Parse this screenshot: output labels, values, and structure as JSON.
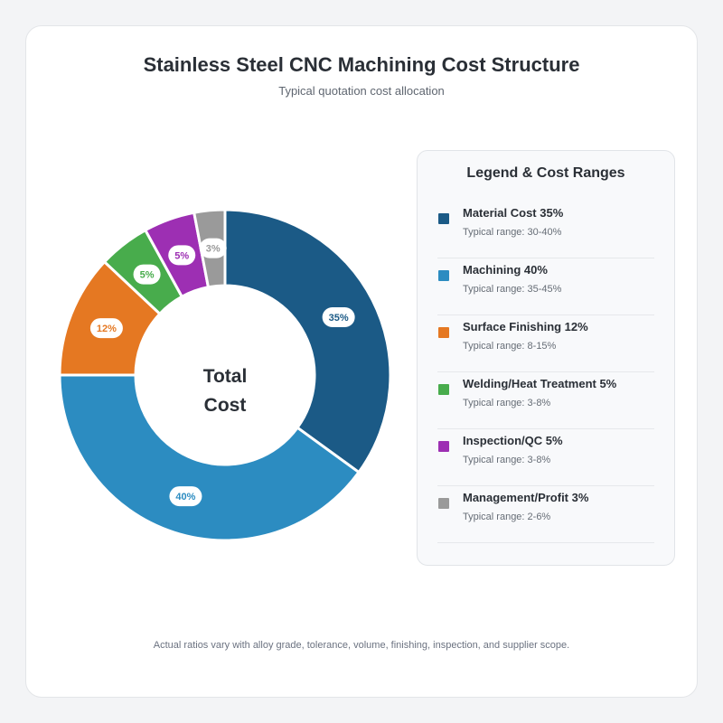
{
  "chart_data": {
    "type": "pie",
    "title": "Stainless Steel CNC Machining Cost Structure",
    "subtitle": "Typical quotation cost allocation",
    "center_label": [
      "Total",
      "Cost"
    ],
    "categories": [
      "Material Cost",
      "Machining",
      "Surface Finishing",
      "Welding/Heat Treatment",
      "Inspection/QC",
      "Management/Profit"
    ],
    "values": [
      35,
      40,
      12,
      5,
      5,
      3
    ],
    "value_labels": [
      "35%",
      "40%",
      "12%",
      "5%",
      "5%",
      "3%"
    ],
    "colors": [
      "#1b5a86",
      "#2c8cc1",
      "#e57822",
      "#48ac4c",
      "#9d2fb3",
      "#9a9a9a"
    ],
    "legend_placement": "right"
  },
  "legend": {
    "title": "Legend & Cost Ranges",
    "items": [
      {
        "label": "Material Cost 35%",
        "range": "Typical range: 30-40%"
      },
      {
        "label": "Machining 40%",
        "range": "Typical range: 35-45%"
      },
      {
        "label": "Surface Finishing 12%",
        "range": "Typical range: 8-15%"
      },
      {
        "label": "Welding/Heat Treatment 5%",
        "range": "Typical range: 3-8%"
      },
      {
        "label": "Inspection/QC 5%",
        "range": "Typical range: 3-8%"
      },
      {
        "label": "Management/Profit 3%",
        "range": "Typical range: 2-6%"
      }
    ]
  },
  "footnote": "Actual ratios vary with alloy grade, tolerance, volume, finishing, inspection, and supplier scope."
}
